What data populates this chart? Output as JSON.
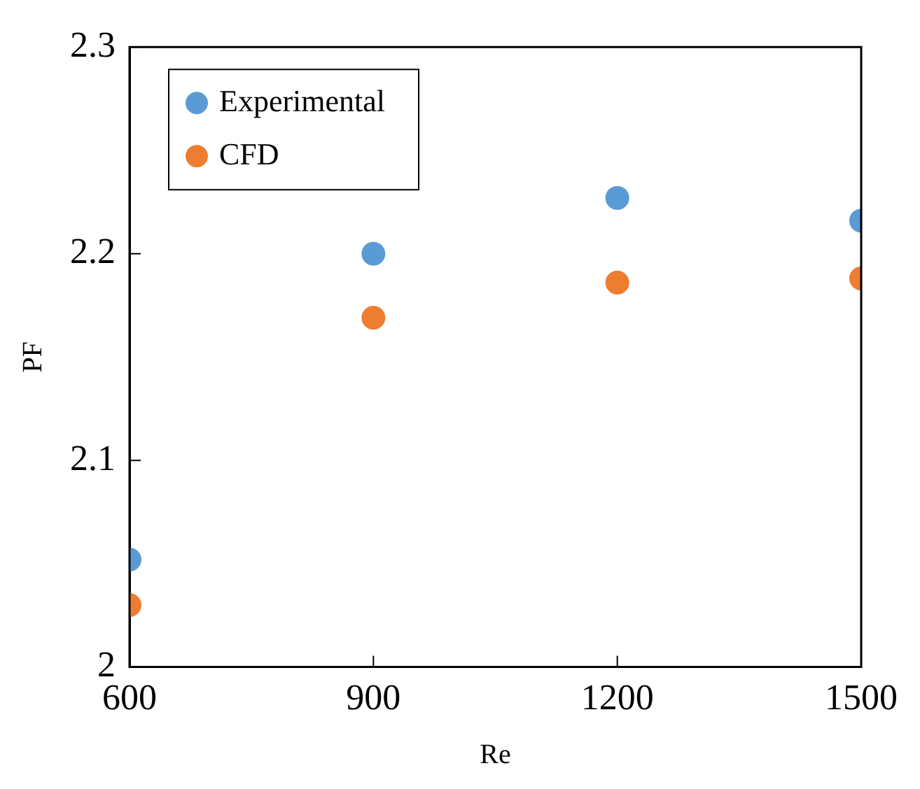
{
  "chart_data": {
    "type": "scatter",
    "xlabel": "Re",
    "ylabel": "PF",
    "x": [
      600,
      900,
      1200,
      1500
    ],
    "series": [
      {
        "name": "Experimental",
        "color": "#5b9bd5",
        "values": [
          2.052,
          2.2,
          2.227,
          2.216
        ]
      },
      {
        "name": "CFD",
        "color": "#ed7d31",
        "values": [
          2.03,
          2.169,
          2.186,
          2.188
        ]
      }
    ],
    "xlim": [
      600,
      1500
    ],
    "xticks": [
      600,
      900,
      1200,
      1500
    ],
    "ylim": [
      2,
      2.3
    ],
    "yticks": [
      2,
      2.1,
      2.2,
      2.3
    ],
    "grid": false,
    "legend": "top left",
    "marker": "circle"
  }
}
